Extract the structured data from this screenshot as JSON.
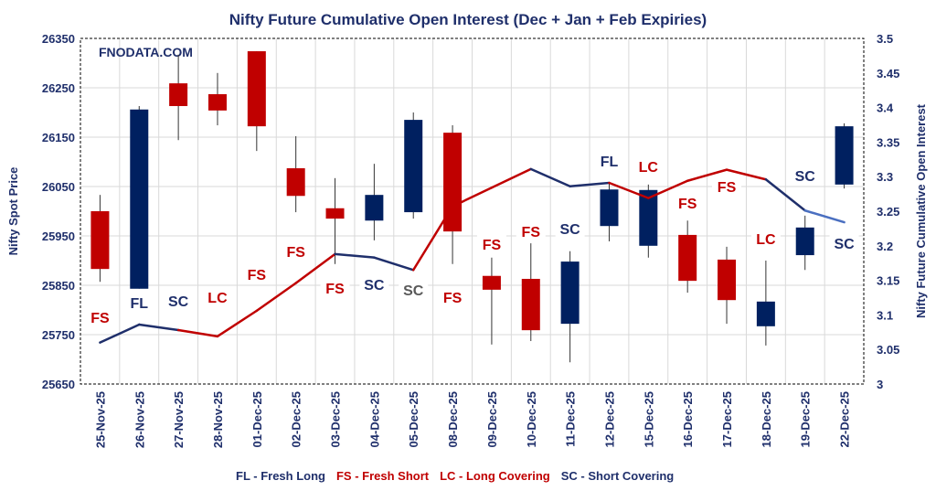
{
  "chart_data": {
    "type": "candlestick+line",
    "title": "Nifty Future Cumulative Open Interest (Dec + Jan  + Feb Expiries)",
    "watermark": "FNODATA.COM",
    "ylabel": "Nifty Spot Price",
    "y2label": "Nifty Future Cumulative Open Interest",
    "ylim": [
      25650,
      26350
    ],
    "yticks": [
      "25650",
      "25750",
      "25850",
      "25950",
      "26050",
      "26150",
      "26250",
      "26350"
    ],
    "y2lim": [
      3,
      3.5
    ],
    "y2ticks": [
      "3",
      "3.05",
      "3.1",
      "3.15",
      "3.2",
      "3.25",
      "3.3",
      "3.35",
      "3.4",
      "3.45",
      "3.5"
    ],
    "grid": true,
    "categories": [
      "25-Nov-25",
      "26-Nov-25",
      "27-Nov-25",
      "28-Nov-25",
      "01-Dec-25",
      "02-Dec-25",
      "03-Dec-25",
      "04-Dec-25",
      "05-Dec-25",
      "08-Dec-25",
      "09-Dec-25",
      "10-Dec-25",
      "11-Dec-25",
      "12-Dec-25",
      "15-Dec-25",
      "16-Dec-25",
      "17-Dec-25",
      "18-Dec-25",
      "19-Dec-25",
      "22-Dec-25"
    ],
    "ohlc": [
      [
        26000,
        26033,
        25857,
        25883
      ],
      [
        25843,
        26213,
        25843,
        26206
      ],
      [
        26259,
        26317,
        26144,
        26213
      ],
      [
        26237,
        26280,
        26174,
        26204
      ],
      [
        26324,
        26324,
        26122,
        26172
      ],
      [
        26087,
        26152,
        25998,
        26031
      ],
      [
        26006,
        26067,
        25893,
        25985
      ],
      [
        25981,
        26096,
        25941,
        26033
      ],
      [
        25998,
        26200,
        25985,
        26185
      ],
      [
        26159,
        26174,
        25893,
        25959
      ],
      [
        25869,
        25906,
        25730,
        25841
      ],
      [
        25863,
        25935,
        25737,
        25759
      ],
      [
        25772,
        25919,
        25694,
        25898
      ],
      [
        25970,
        26057,
        25939,
        26044
      ],
      [
        25930,
        26054,
        25906,
        26043
      ],
      [
        25952,
        25981,
        25835,
        25859
      ],
      [
        25902,
        25928,
        25772,
        25820
      ],
      [
        25767,
        25900,
        25728,
        25817
      ],
      [
        25911,
        25991,
        25881,
        25967
      ],
      [
        26054,
        26178,
        26046,
        26172
      ]
    ],
    "open_interest": [
      3.06,
      3.086,
      3.078,
      3.069,
      3.106,
      3.146,
      3.188,
      3.183,
      3.165,
      3.257,
      3.284,
      3.311,
      3.286,
      3.291,
      3.269,
      3.294,
      3.31,
      3.296,
      3.251,
      3.234
    ],
    "labels": [
      "FS",
      "FL",
      "SC",
      "LC",
      "FS",
      "FS",
      "FS",
      "SC",
      "SC",
      "FS",
      "FS",
      "FS",
      "SC",
      "FL",
      "LC",
      "FS",
      "FS",
      "LC",
      "SC",
      "SC"
    ],
    "legend": [
      {
        "code": "FL",
        "text": "FL - Fresh Long",
        "color": "#1f2f6b"
      },
      {
        "code": "FS",
        "text": "FS - Fresh Short",
        "color": "#c00000"
      },
      {
        "code": "LC",
        "text": "LC - Long Covering",
        "color": "#c00000"
      },
      {
        "code": "SC",
        "text": "SC - Short Covering",
        "color": "#1f2f6b"
      }
    ],
    "colors": {
      "up": "#002060",
      "down": "#c00000",
      "label_blue": "#1f2f6b",
      "label_red": "#c00000"
    }
  }
}
